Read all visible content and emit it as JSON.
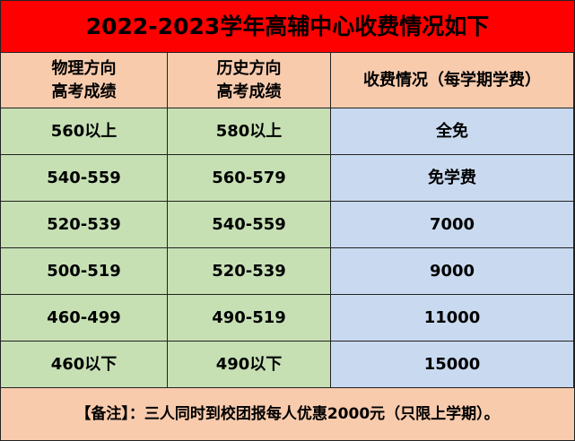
{
  "title": "2022-2023学年高辅中心收费情况如下",
  "table": {
    "header": [
      [
        "物理方向",
        "高考成绩"
      ],
      [
        "历史方向",
        "高考成绩"
      ],
      [
        "收费情况（每学期学费）"
      ]
    ],
    "rows": [
      [
        "560以上",
        "580以上",
        "全免"
      ],
      [
        "540-559",
        "560-579",
        "免学费"
      ],
      [
        "520-539",
        "540-559",
        "7000"
      ],
      [
        "500-519",
        "520-539",
        "9000"
      ],
      [
        "460-499",
        "490-519",
        "11000"
      ],
      [
        "460以下",
        "490以下",
        "15000"
      ]
    ]
  },
  "note": "【备注】：三人同时到校团报每人优惠2000元（只限上学期）。"
}
